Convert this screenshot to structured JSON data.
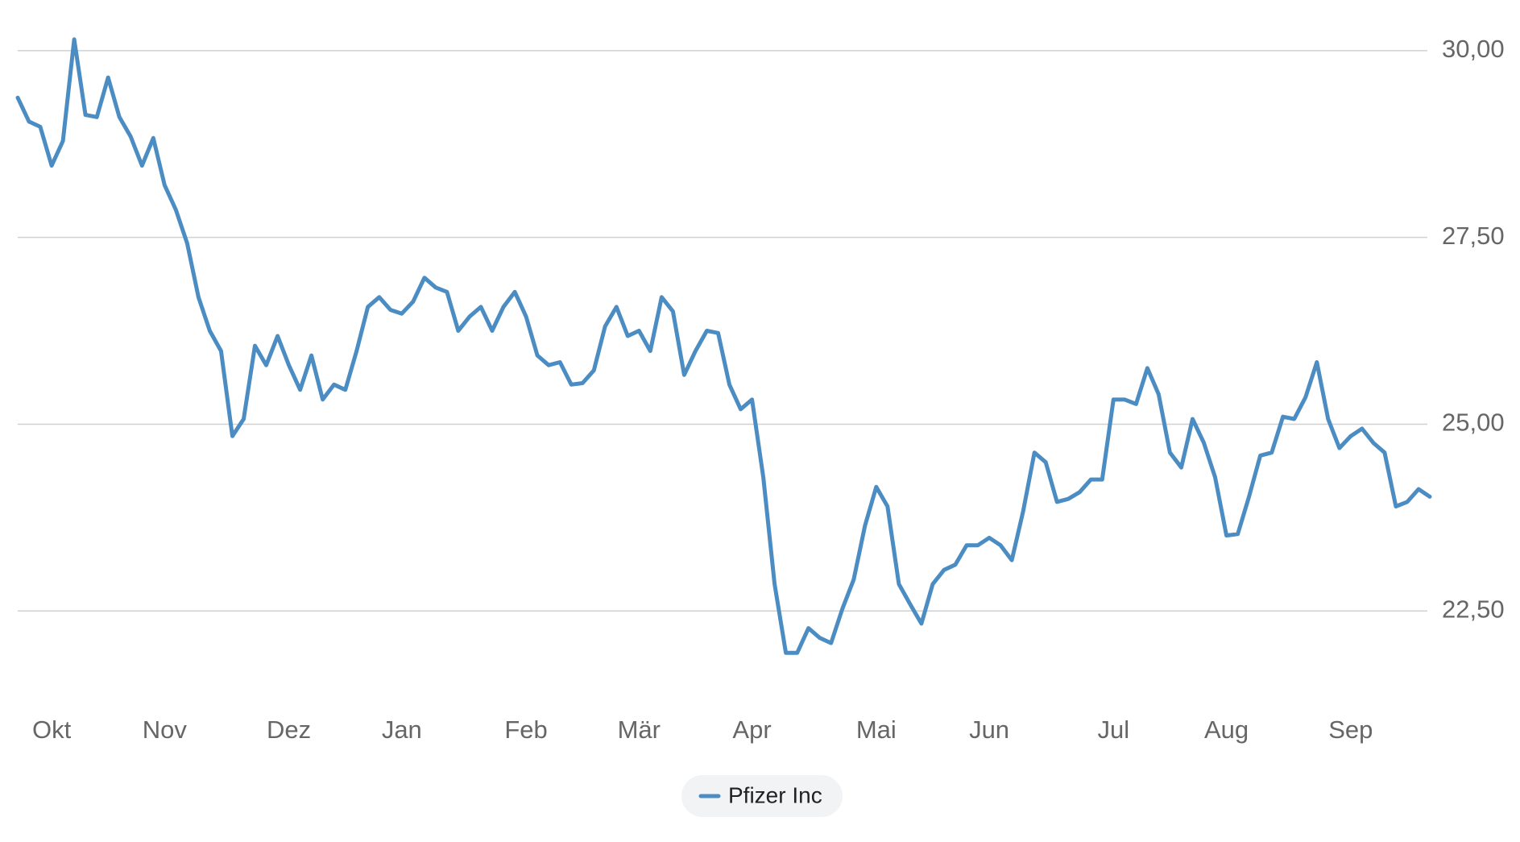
{
  "chart_data": {
    "type": "line",
    "categories": [
      null,
      null,
      null,
      "Okt",
      null,
      null,
      null,
      null,
      null,
      null,
      null,
      null,
      null,
      "Nov",
      null,
      null,
      null,
      null,
      null,
      null,
      null,
      null,
      null,
      null,
      "Dez",
      null,
      null,
      null,
      null,
      null,
      null,
      null,
      null,
      null,
      "Jan",
      null,
      null,
      null,
      null,
      null,
      null,
      null,
      null,
      null,
      null,
      "Feb",
      null,
      null,
      null,
      null,
      null,
      null,
      null,
      null,
      null,
      "Mär",
      null,
      null,
      null,
      null,
      null,
      null,
      null,
      null,
      null,
      "Apr",
      null,
      null,
      null,
      null,
      null,
      null,
      null,
      null,
      null,
      null,
      "Mai",
      null,
      null,
      null,
      null,
      null,
      null,
      null,
      null,
      null,
      "Jun",
      null,
      null,
      null,
      null,
      null,
      null,
      null,
      null,
      null,
      null,
      "Jul",
      null,
      null,
      null,
      null,
      null,
      null,
      null,
      null,
      null,
      "Aug",
      null,
      null,
      null,
      null,
      null,
      null,
      null,
      null,
      null,
      null,
      "Sep",
      null,
      null,
      null,
      null,
      null,
      null,
      null
    ],
    "series": [
      {
        "name": "Pfizer Inc",
        "color": "#4b8dc3",
        "values": [
          29.37,
          29.05,
          28.98,
          28.46,
          28.79,
          30.15,
          29.14,
          29.11,
          29.64,
          29.11,
          28.85,
          28.46,
          28.83,
          28.2,
          27.87,
          27.42,
          26.7,
          26.25,
          25.98,
          24.84,
          25.07,
          26.05,
          25.79,
          26.18,
          25.79,
          25.46,
          25.92,
          25.33,
          25.53,
          25.46,
          25.98,
          26.57,
          26.7,
          26.53,
          26.48,
          26.64,
          26.96,
          26.83,
          26.77,
          26.25,
          26.44,
          26.57,
          26.25,
          26.57,
          26.77,
          26.44,
          25.92,
          25.79,
          25.83,
          25.53,
          25.55,
          25.72,
          26.31,
          26.57,
          26.18,
          26.25,
          25.98,
          26.7,
          26.51,
          25.66,
          25.98,
          26.25,
          26.22,
          25.53,
          25.2,
          25.33,
          24.29,
          22.86,
          21.94,
          21.94,
          22.27,
          22.14,
          22.07,
          22.53,
          22.92,
          23.64,
          24.16,
          23.9,
          22.86,
          22.59,
          22.33,
          22.86,
          23.05,
          23.12,
          23.38,
          23.38,
          23.48,
          23.38,
          23.18,
          23.83,
          24.62,
          24.49,
          23.96,
          24.0,
          24.09,
          24.26,
          24.26,
          25.33,
          25.33,
          25.27,
          25.75,
          25.4,
          24.62,
          24.42,
          25.07,
          24.75,
          24.29,
          23.51,
          23.53,
          24.03,
          24.58,
          24.62,
          25.1,
          25.07,
          25.36,
          25.83,
          25.07,
          24.68,
          24.84,
          24.94,
          24.75,
          24.62,
          23.9,
          23.96,
          24.13,
          24.03
        ]
      }
    ],
    "ylim": [
      21.5,
      30.3
    ],
    "yticks": [
      {
        "value": 22.5,
        "label": "22,50"
      },
      {
        "value": 25,
        "label": "25,00"
      },
      {
        "value": 27.5,
        "label": "27,50"
      },
      {
        "value": 30,
        "label": "30,00"
      }
    ],
    "grid": true,
    "legend": "bottom"
  }
}
